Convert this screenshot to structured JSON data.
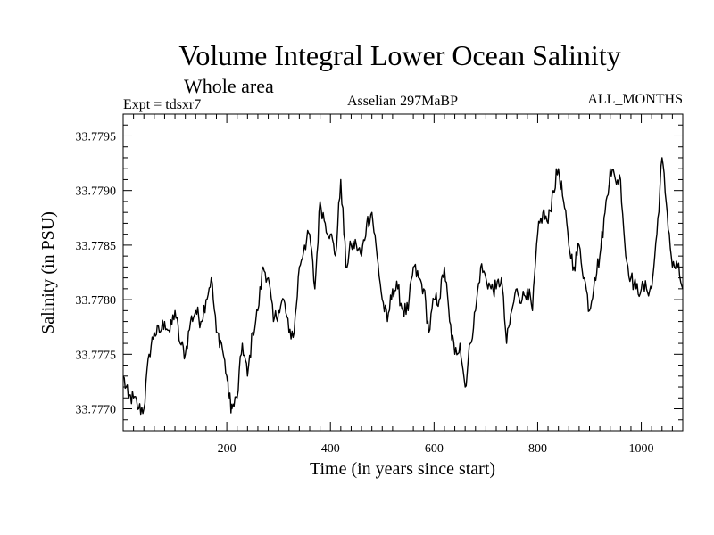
{
  "chart_data": {
    "type": "line",
    "title": "Volume Integral Lower Ocean Salinity",
    "subtitle": "Whole area",
    "expt_label": "Expt = tdsxr7",
    "period_label": "Asselian 297MaBP",
    "months_label": "ALL_MONTHS",
    "xlabel": "Time (in years since start)",
    "ylabel": "Salinity (in PSU)",
    "xlim": [
      0,
      1080
    ],
    "ylim": [
      33.7768,
      33.7797
    ],
    "x_ticks": [
      200,
      400,
      600,
      800,
      1000
    ],
    "y_ticks": [
      33.777,
      33.7775,
      33.778,
      33.7785,
      33.779,
      33.7795
    ],
    "y_tick_labels": [
      "33.7770",
      "33.7775",
      "33.7780",
      "33.7785",
      "33.7790",
      "33.7795"
    ],
    "series": [
      {
        "name": "Salinity",
        "x": [
          0,
          10,
          20,
          30,
          40,
          50,
          60,
          70,
          80,
          90,
          100,
          110,
          120,
          130,
          140,
          150,
          160,
          170,
          180,
          190,
          200,
          205,
          210,
          220,
          230,
          240,
          250,
          260,
          270,
          280,
          290,
          300,
          310,
          320,
          330,
          340,
          350,
          360,
          370,
          380,
          390,
          400,
          410,
          420,
          430,
          440,
          450,
          460,
          470,
          480,
          490,
          500,
          510,
          520,
          530,
          540,
          550,
          560,
          570,
          580,
          590,
          600,
          610,
          620,
          630,
          640,
          650,
          660,
          670,
          680,
          690,
          700,
          710,
          720,
          730,
          740,
          750,
          760,
          770,
          780,
          790,
          800,
          810,
          820,
          830,
          840,
          850,
          860,
          870,
          880,
          890,
          900,
          910,
          920,
          930,
          940,
          950,
          960,
          970,
          980,
          990,
          1000,
          1010,
          1020,
          1030,
          1040,
          1050,
          1060,
          1070,
          1080
        ],
        "y": [
          33.7773,
          33.7771,
          33.7771,
          33.777,
          33.777,
          33.7775,
          33.7777,
          33.7777,
          33.7778,
          33.7777,
          33.7779,
          33.7776,
          33.7775,
          33.7778,
          33.7779,
          33.7778,
          33.778,
          33.7782,
          33.7777,
          33.7776,
          33.7773,
          33.7771,
          33.777,
          33.7771,
          33.7776,
          33.7773,
          33.7777,
          33.7779,
          33.7783,
          33.7782,
          33.7778,
          33.7779,
          33.778,
          33.7777,
          33.7777,
          33.7783,
          33.7785,
          33.7786,
          33.7781,
          33.7789,
          33.7787,
          33.7786,
          33.7784,
          33.7791,
          33.7783,
          33.7785,
          33.7785,
          33.7784,
          33.7787,
          33.7788,
          33.7784,
          33.778,
          33.7778,
          33.7781,
          33.7781,
          33.7779,
          33.7779,
          33.7783,
          33.7782,
          33.7781,
          33.7777,
          33.778,
          33.778,
          33.7783,
          33.7778,
          33.7775,
          33.7776,
          33.7772,
          33.7776,
          33.7779,
          33.7783,
          33.7782,
          33.7781,
          33.7781,
          33.7782,
          33.7776,
          33.7779,
          33.7781,
          33.778,
          33.7781,
          33.7779,
          33.7786,
          33.7788,
          33.7787,
          33.779,
          33.7792,
          33.7789,
          33.7785,
          33.7783,
          33.7785,
          33.7782,
          33.7779,
          33.7782,
          33.7784,
          33.7788,
          33.7792,
          33.7791,
          33.7791,
          33.7784,
          33.7782,
          33.7781,
          33.7781,
          33.7781,
          33.7781,
          33.7786,
          33.7793,
          33.7788,
          33.7783,
          33.7783,
          33.7781
        ]
      }
    ]
  }
}
